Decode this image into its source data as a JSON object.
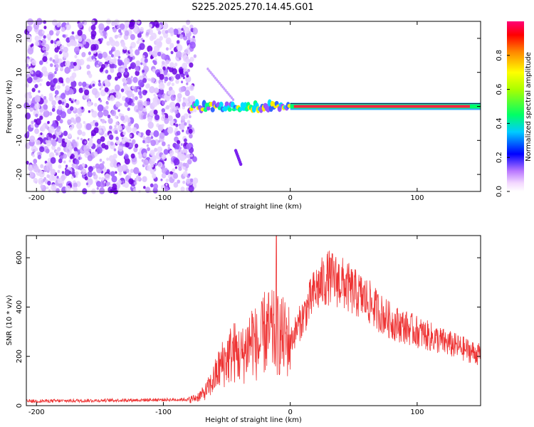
{
  "title": "S225.2025.270.14.45.G01",
  "chart_data": [
    {
      "type": "heatmap",
      "name": "spectrogram",
      "xlabel": "Height of straight line (km)",
      "ylabel": "Frequency (Hz)",
      "xlim": [
        -208,
        150
      ],
      "ylim": [
        -25,
        25
      ],
      "xticks": [
        -200,
        -100,
        0,
        100
      ],
      "xtick_labels": [
        "-200",
        "-100",
        "0",
        "100"
      ],
      "yticks": [
        -20,
        -10,
        0,
        10,
        20
      ],
      "ytick_labels": [
        "-20",
        "-10",
        "0",
        "10",
        "20"
      ],
      "noise_region_km": [
        -208,
        -78
      ],
      "signal_line_hz": 0,
      "features": [
        {
          "name": "strong-carrier",
          "x_range": [
            0,
            150
          ],
          "freq_hz": 0,
          "amplitude": 0.95
        },
        {
          "name": "scattered-trace",
          "x_range": [
            -78,
            0
          ],
          "freq_hz": 0,
          "amplitude": 0.4
        },
        {
          "name": "drifting-trace",
          "x_range": [
            -65,
            -45
          ],
          "freq_range_hz": [
            11,
            2
          ],
          "amplitude": 0.2
        },
        {
          "name": "weak-feature",
          "x_range": [
            -43,
            -39
          ],
          "freq_range_hz": [
            -13,
            -17
          ],
          "amplitude": 0.3
        }
      ],
      "colorbar": {
        "label": "Normalized spectral amplitude",
        "range": [
          0,
          1
        ],
        "ticks": [
          0.0,
          0.2,
          0.4,
          0.6,
          0.8
        ],
        "tick_labels": [
          "0.0",
          "0.2",
          "0.4",
          "0.6",
          "0.8"
        ]
      }
    },
    {
      "type": "line",
      "name": "snr",
      "xlabel": "Height of straight line (km)",
      "ylabel": "SNR (10 * v/v)",
      "xlim": [
        -208,
        150
      ],
      "ylim": [
        0,
        690
      ],
      "xticks": [
        -200,
        -100,
        0,
        100
      ],
      "xtick_labels": [
        "-200",
        "-100",
        "0",
        "100"
      ],
      "yticks": [
        0,
        200,
        400,
        600
      ],
      "ytick_labels": [
        "0",
        "200",
        "400",
        "600"
      ],
      "color": "#ee3333",
      "anchors_x": [
        -208,
        -80,
        -75,
        -68,
        -62,
        -55,
        -45,
        -38,
        -30,
        -25,
        -20,
        -10,
        0,
        10,
        20,
        30,
        40,
        50,
        60,
        70,
        80,
        100,
        120,
        140,
        150
      ],
      "anchors_y": [
        18,
        25,
        30,
        50,
        90,
        160,
        220,
        200,
        280,
        230,
        300,
        290,
        260,
        360,
        470,
        520,
        500,
        460,
        430,
        380,
        340,
        300,
        260,
        225,
        205
      ],
      "spike": {
        "x": -11,
        "y": 690
      }
    }
  ]
}
